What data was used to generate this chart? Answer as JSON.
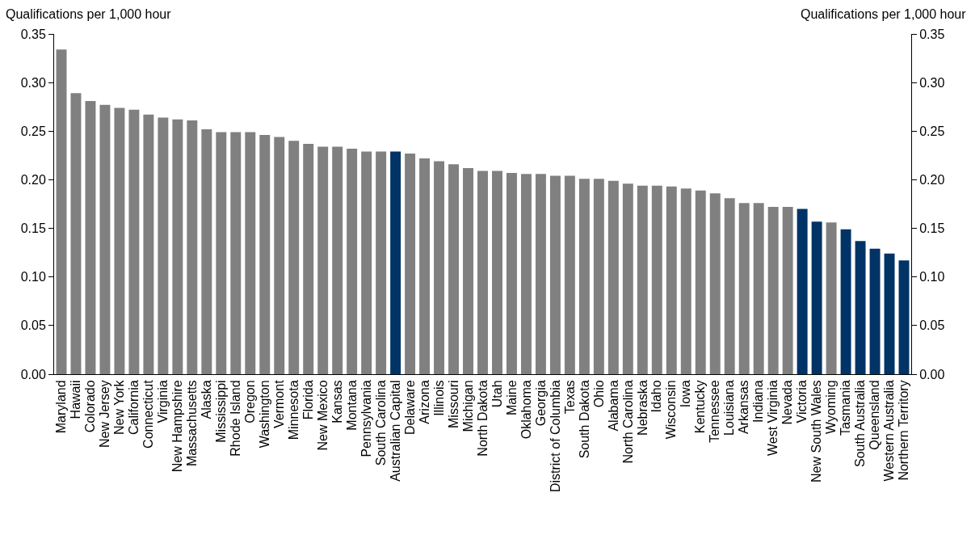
{
  "chart_data": {
    "type": "bar",
    "ylabel": "Qualifications per 1,000 hour",
    "y2label": "Qualifications per 1,000 hour",
    "categories": [
      "Maryland",
      "Hawaii",
      "Colorado",
      "New Jersey",
      "New York",
      "California",
      "Connecticut",
      "Virginia",
      "New Hampshire",
      "Massachusetts",
      "Alaska",
      "Mississippi",
      "Rhode Island",
      "Oregon",
      "Washington",
      "Vermont",
      "Minnesota",
      "Florida",
      "New Mexico",
      "Kansas",
      "Montana",
      "Pennsylvania",
      "South Carolina",
      "Australian Capital",
      "Delaware",
      "Arizona",
      "Illinois",
      "Missouri",
      "Michigan",
      "North Dakota",
      "Utah",
      "Maine",
      "Oklahoma",
      "Georgia",
      "District of Columbia",
      "Texas",
      "South Dakota",
      "Ohio",
      "Alabama",
      "North Carolina",
      "Nebraska",
      "Idaho",
      "Wisconsin",
      "Iowa",
      "Kentucky",
      "Tennessee",
      "Louisiana",
      "Arkansas",
      "Indiana",
      "West Virginia",
      "Nevada",
      "Victoria",
      "New South Wales",
      "Wyoming",
      "Tasmania",
      "South Australia",
      "Queensland",
      "Western Australia",
      "Northern Territory"
    ],
    "values": [
      0.334,
      0.289,
      0.281,
      0.277,
      0.274,
      0.272,
      0.267,
      0.264,
      0.262,
      0.261,
      0.252,
      0.249,
      0.249,
      0.249,
      0.246,
      0.244,
      0.24,
      0.237,
      0.234,
      0.234,
      0.232,
      0.229,
      0.229,
      0.229,
      0.227,
      0.222,
      0.219,
      0.216,
      0.212,
      0.209,
      0.209,
      0.207,
      0.206,
      0.206,
      0.204,
      0.204,
      0.201,
      0.201,
      0.199,
      0.196,
      0.194,
      0.194,
      0.193,
      0.191,
      0.189,
      0.186,
      0.181,
      0.176,
      0.176,
      0.172,
      0.172,
      0.17,
      0.157,
      0.156,
      0.149,
      0.137,
      0.129,
      0.124,
      0.117
    ],
    "colors": [
      "#808080",
      "#808080",
      "#808080",
      "#808080",
      "#808080",
      "#808080",
      "#808080",
      "#808080",
      "#808080",
      "#808080",
      "#808080",
      "#808080",
      "#808080",
      "#808080",
      "#808080",
      "#808080",
      "#808080",
      "#808080",
      "#808080",
      "#808080",
      "#808080",
      "#808080",
      "#808080",
      "#003366",
      "#808080",
      "#808080",
      "#808080",
      "#808080",
      "#808080",
      "#808080",
      "#808080",
      "#808080",
      "#808080",
      "#808080",
      "#808080",
      "#808080",
      "#808080",
      "#808080",
      "#808080",
      "#808080",
      "#808080",
      "#808080",
      "#808080",
      "#808080",
      "#808080",
      "#808080",
      "#808080",
      "#808080",
      "#808080",
      "#808080",
      "#808080",
      "#003366",
      "#003366",
      "#808080",
      "#003366",
      "#003366",
      "#003366",
      "#003366",
      "#003366"
    ],
    "ylim": [
      0,
      0.35
    ],
    "yticks": [
      {
        "value": 0,
        "label": "0.00"
      },
      {
        "value": 0.05,
        "label": "0.05"
      },
      {
        "value": 0.1,
        "label": "0.10"
      },
      {
        "value": 0.15,
        "label": "0.15"
      },
      {
        "value": 0.2,
        "label": "0.20"
      },
      {
        "value": 0.25,
        "label": "0.25"
      },
      {
        "value": 0.3,
        "label": "0.30"
      },
      {
        "value": 0.35,
        "label": "0.35"
      }
    ],
    "y2lim": [
      0,
      0.35
    ],
    "y2ticks": [
      {
        "value": 0,
        "label": "0.00"
      },
      {
        "value": 0.05,
        "label": "0.05"
      },
      {
        "value": 0.1,
        "label": "0.10"
      },
      {
        "value": 0.15,
        "label": "0.15"
      },
      {
        "value": 0.2,
        "label": "0.20"
      },
      {
        "value": 0.25,
        "label": "0.25"
      },
      {
        "value": 0.3,
        "label": "0.30"
      },
      {
        "value": 0.35,
        "label": "0.35"
      }
    ]
  }
}
